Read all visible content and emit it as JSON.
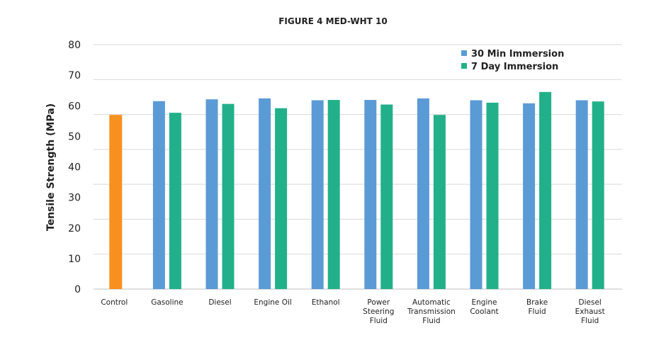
{
  "chart_data": {
    "type": "bar",
    "title": "FIGURE 4 MED-WHT 10",
    "xlabel": "",
    "ylabel": "Tensile Strength (MPa)",
    "ylim": [
      0,
      80
    ],
    "yticks": [
      "0",
      "10",
      "20",
      "30",
      "40",
      "50",
      "60",
      "70",
      "80"
    ],
    "grid": true,
    "legend_position": "top-right",
    "categories": [
      [
        "Control"
      ],
      [
        "Gasoline"
      ],
      [
        "Diesel"
      ],
      [
        "Engine Oil"
      ],
      [
        "Ethanol"
      ],
      [
        "Power",
        "Steering",
        "Fluid"
      ],
      [
        "Automatic",
        "Transmission",
        "Fluid"
      ],
      [
        "Engine",
        "Coolant"
      ],
      [
        "Brake",
        "Fluid"
      ],
      [
        "Diesel",
        "Exhaust",
        "Fluid"
      ]
    ],
    "control": {
      "value": 57.0,
      "color": "#F7901E"
    },
    "series": [
      {
        "name": "30 Min Immersion",
        "color": "#5B9BD5",
        "values": [
          null,
          61.5,
          62.1,
          62.4,
          61.8,
          61.9,
          62.4,
          61.8,
          60.8,
          61.8
        ]
      },
      {
        "name": "7 Day Immersion",
        "color": "#22B08A",
        "values": [
          null,
          57.7,
          60.6,
          59.2,
          61.9,
          60.4,
          57.0,
          61.0,
          64.5,
          61.4
        ]
      }
    ]
  }
}
